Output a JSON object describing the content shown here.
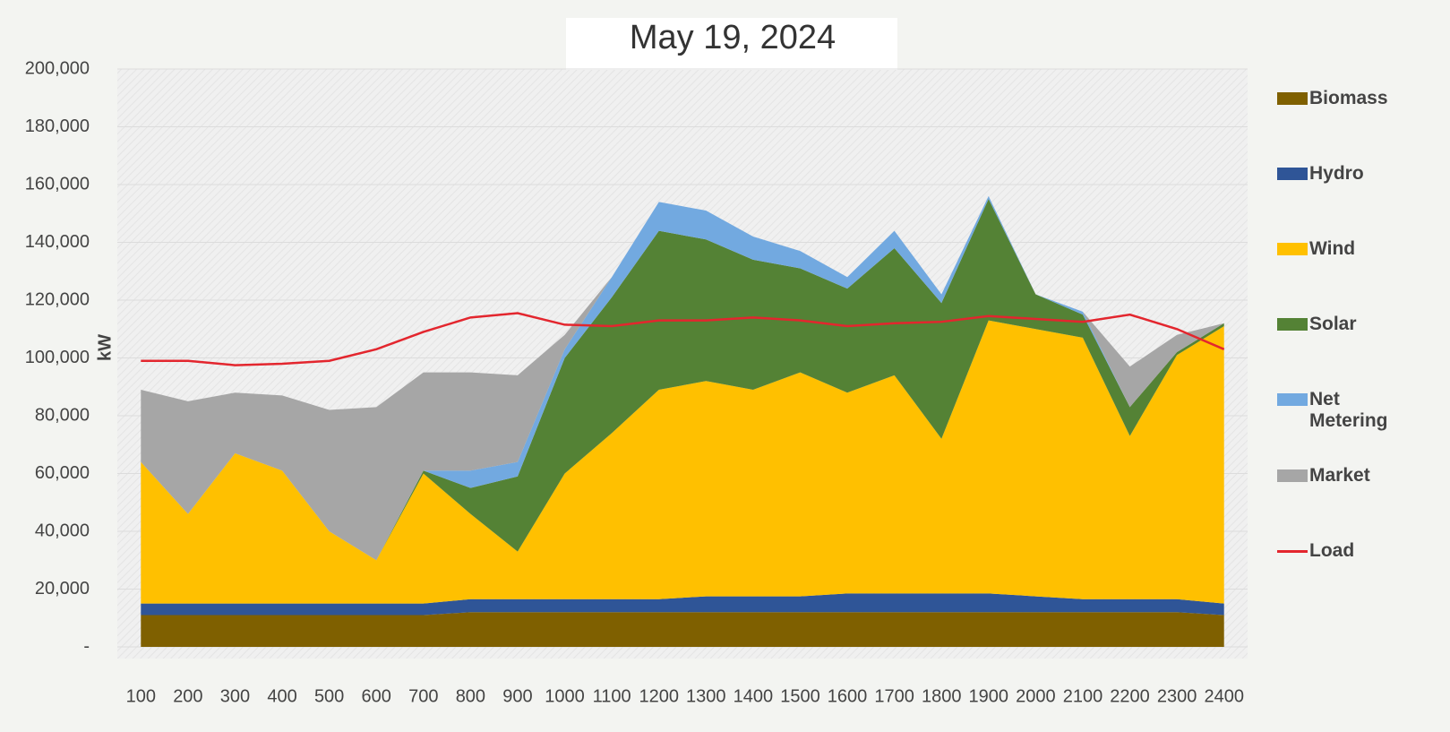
{
  "chart_data": {
    "type": "area",
    "title": "May 19, 2024",
    "y_label": "kW",
    "categories": [
      "100",
      "200",
      "300",
      "400",
      "500",
      "600",
      "700",
      "800",
      "900",
      "1000",
      "1100",
      "1200",
      "1300",
      "1400",
      "1500",
      "1600",
      "1700",
      "1800",
      "1900",
      "2000",
      "2100",
      "2200",
      "2300",
      "2400"
    ],
    "series": [
      {
        "name": "Biomass",
        "color": "#7f6000",
        "values": [
          11000,
          11000,
          11000,
          11000,
          11000,
          11000,
          11000,
          12000,
          12000,
          12000,
          12000,
          12000,
          12000,
          12000,
          12000,
          12000,
          12000,
          12000,
          12000,
          12000,
          12000,
          12000,
          12000,
          11000
        ]
      },
      {
        "name": "Hydro",
        "color": "#2f5597",
        "values": [
          4000,
          4000,
          4000,
          4000,
          4000,
          4000,
          4000,
          4500,
          4500,
          4500,
          4500,
          4500,
          5500,
          5500,
          5500,
          6500,
          6500,
          6500,
          6500,
          5500,
          4500,
          4500,
          4500,
          4000
        ]
      },
      {
        "name": "Wind",
        "color": "#ffc000",
        "values": [
          49000,
          31000,
          52000,
          46000,
          25000,
          15000,
          45000,
          29500,
          16500,
          43500,
          57500,
          72500,
          74500,
          71500,
          77500,
          69500,
          75500,
          53500,
          94500,
          92500,
          90500,
          56500,
          84500,
          96000
        ]
      },
      {
        "name": "Solar",
        "color": "#548235",
        "values": [
          0,
          0,
          0,
          0,
          0,
          0,
          1000,
          9000,
          26000,
          40000,
          47000,
          55000,
          49000,
          45000,
          36000,
          36000,
          44000,
          47000,
          42000,
          12000,
          8000,
          10000,
          1000,
          1000
        ]
      },
      {
        "name": "Net Metering",
        "color": "#72a9e0",
        "values": [
          0,
          0,
          0,
          0,
          0,
          0,
          0,
          6000,
          5000,
          3000,
          7000,
          10000,
          10000,
          8000,
          6000,
          4000,
          6000,
          3000,
          1000,
          0,
          1000,
          0,
          0,
          0
        ]
      },
      {
        "name": "Market",
        "color": "#a6a6a6",
        "values": [
          25000,
          39000,
          21000,
          26000,
          42000,
          53000,
          34000,
          34000,
          30000,
          5000,
          0,
          0,
          0,
          0,
          0,
          0,
          0,
          0,
          0,
          0,
          0,
          14000,
          6000,
          0
        ]
      },
      {
        "name": "Load",
        "color": "#e3262e",
        "type": "line",
        "values": [
          99000,
          99000,
          97500,
          98000,
          99000,
          103000,
          109000,
          114000,
          115500,
          111500,
          111000,
          113000,
          113000,
          114000,
          113000,
          111000,
          112000,
          112500,
          114500,
          113500,
          112500,
          115000,
          110000,
          103000
        ]
      }
    ],
    "ylim": [
      0,
      200000
    ],
    "yticks": [
      {
        "value": 0,
        "label": "-"
      },
      {
        "value": 20000,
        "label": "20,000"
      },
      {
        "value": 40000,
        "label": "40,000"
      },
      {
        "value": 60000,
        "label": "60,000"
      },
      {
        "value": 80000,
        "label": "80,000"
      },
      {
        "value": 100000,
        "label": "100,000"
      },
      {
        "value": 120000,
        "label": "120,000"
      },
      {
        "value": 140000,
        "label": "140,000"
      },
      {
        "value": 160000,
        "label": "160,000"
      },
      {
        "value": 180000,
        "label": "180,000"
      },
      {
        "value": 200000,
        "label": "200,000"
      }
    ],
    "grid": true,
    "legend": "right"
  }
}
